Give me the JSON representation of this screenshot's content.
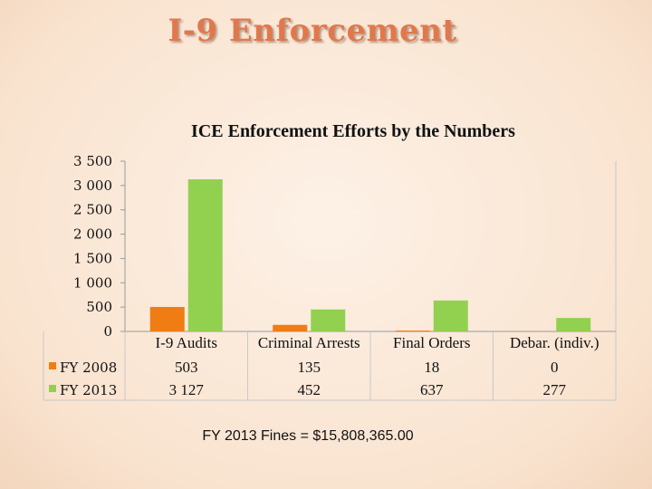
{
  "slide": {
    "title": "I-9 Enforcement",
    "footnote": "FY 2013 Fines = $15,808,365.00"
  },
  "chart_data": {
    "type": "bar",
    "title": "ICE Enforcement Efforts by the Numbers",
    "categories": [
      "I-9 Audits",
      "Criminal Arrests",
      "Final Orders",
      "Debar. (indiv.)"
    ],
    "series": [
      {
        "name": "FY 2008",
        "values": [
          503,
          135,
          18,
          0
        ],
        "display": [
          "503",
          "135",
          "18",
          "0"
        ],
        "color": "#f07d13"
      },
      {
        "name": "FY 2013",
        "values": [
          3127,
          452,
          637,
          277
        ],
        "display": [
          "3 127",
          "452",
          "637",
          "277"
        ],
        "color": "#92d050"
      }
    ],
    "yticks": [
      "3 500",
      "3 000",
      "2 500",
      "2 000",
      "1 500",
      "1 000",
      "500",
      "0"
    ],
    "ylim": [
      0,
      3500
    ],
    "legend_position": "left",
    "data_table": true,
    "grid": false
  }
}
